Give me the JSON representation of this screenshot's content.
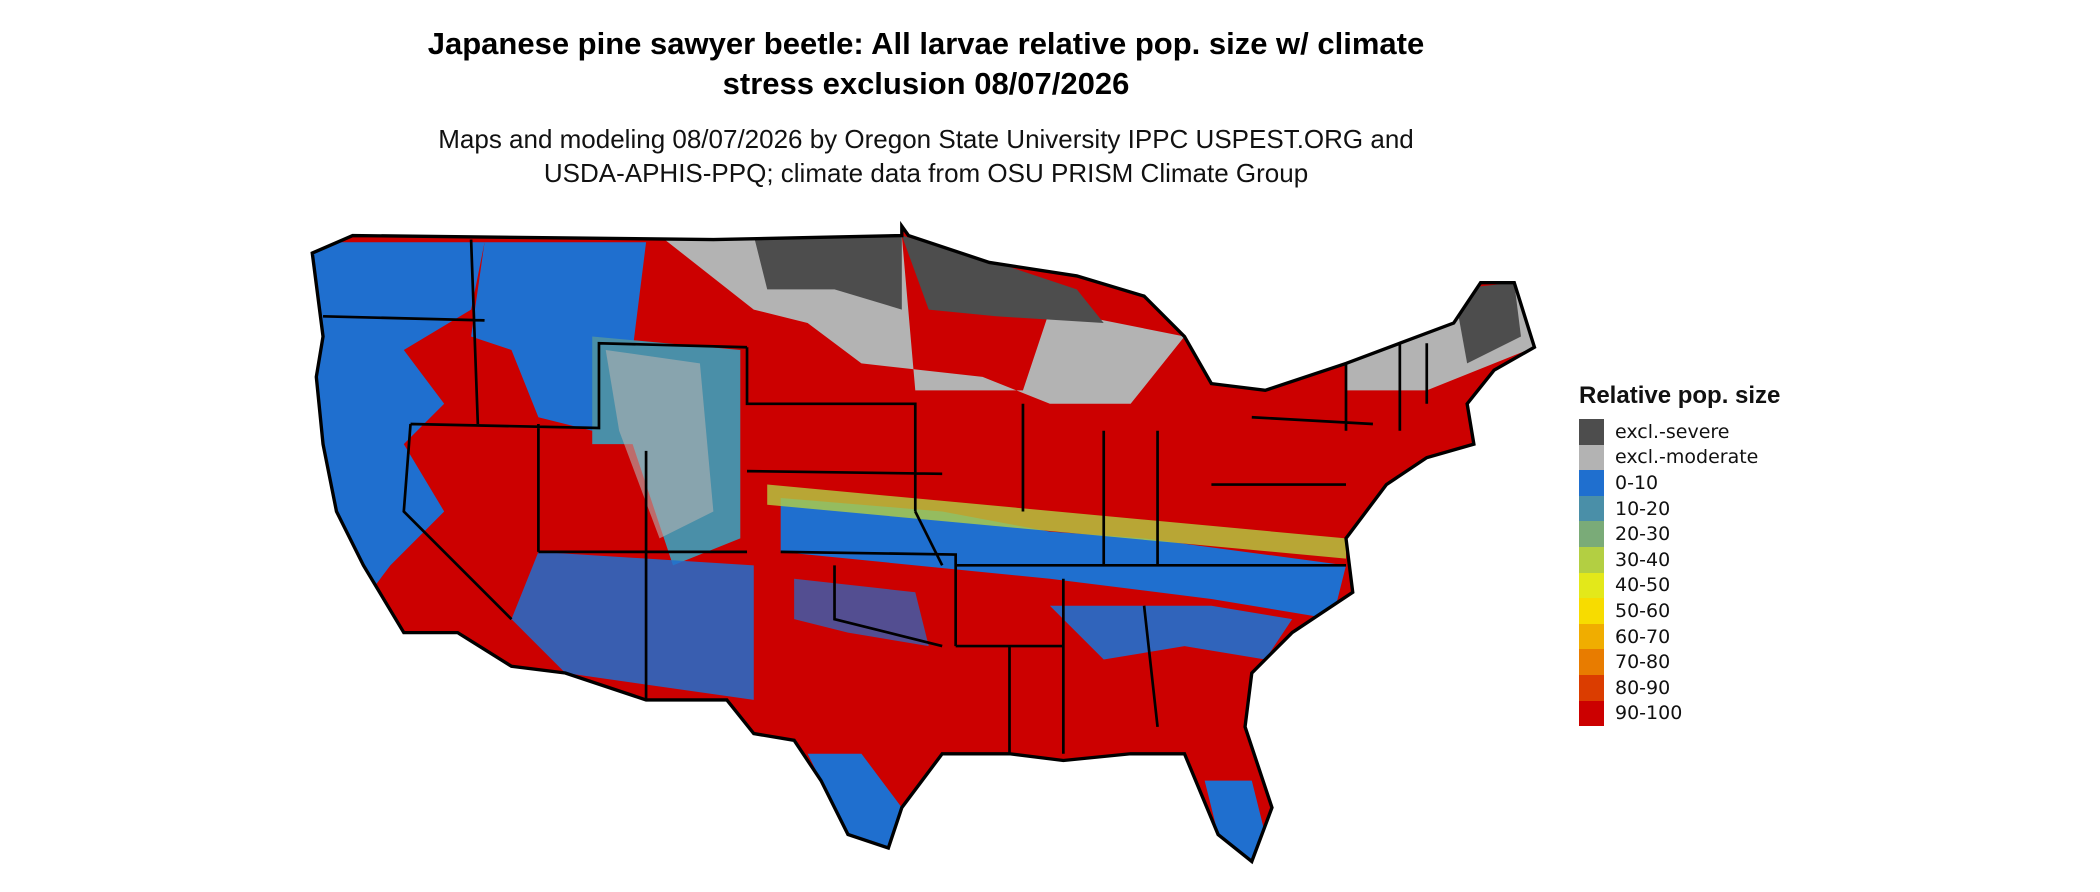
{
  "title": "Japanese pine sawyer beetle: All larvae relative pop. size w/ climate stress exclusion 08/07/2026",
  "subtitle": "Maps and modeling 08/07/2026 by Oregon State University IPPC USPEST.ORG and USDA-APHIS-PPQ; climate data from OSU PRISM Climate Group",
  "legend": {
    "title": "Relative pop. size",
    "items": [
      {
        "label": "excl.-severe",
        "color": "#4d4d4d"
      },
      {
        "label": "excl.-moderate",
        "color": "#b3b3b3"
      },
      {
        "label": "0-10",
        "color": "#1f6fcf"
      },
      {
        "label": "10-20",
        "color": "#4a8fa8"
      },
      {
        "label": "20-30",
        "color": "#7aab78"
      },
      {
        "label": "30-40",
        "color": "#b3cf42"
      },
      {
        "label": "40-50",
        "color": "#e3e81a"
      },
      {
        "label": "50-60",
        "color": "#f7dc00"
      },
      {
        "label": "60-70",
        "color": "#f0ad00"
      },
      {
        "label": "70-80",
        "color": "#e87c00"
      },
      {
        "label": "80-90",
        "color": "#db3d00"
      },
      {
        "label": "90-100",
        "color": "#cc0000"
      }
    ]
  }
}
